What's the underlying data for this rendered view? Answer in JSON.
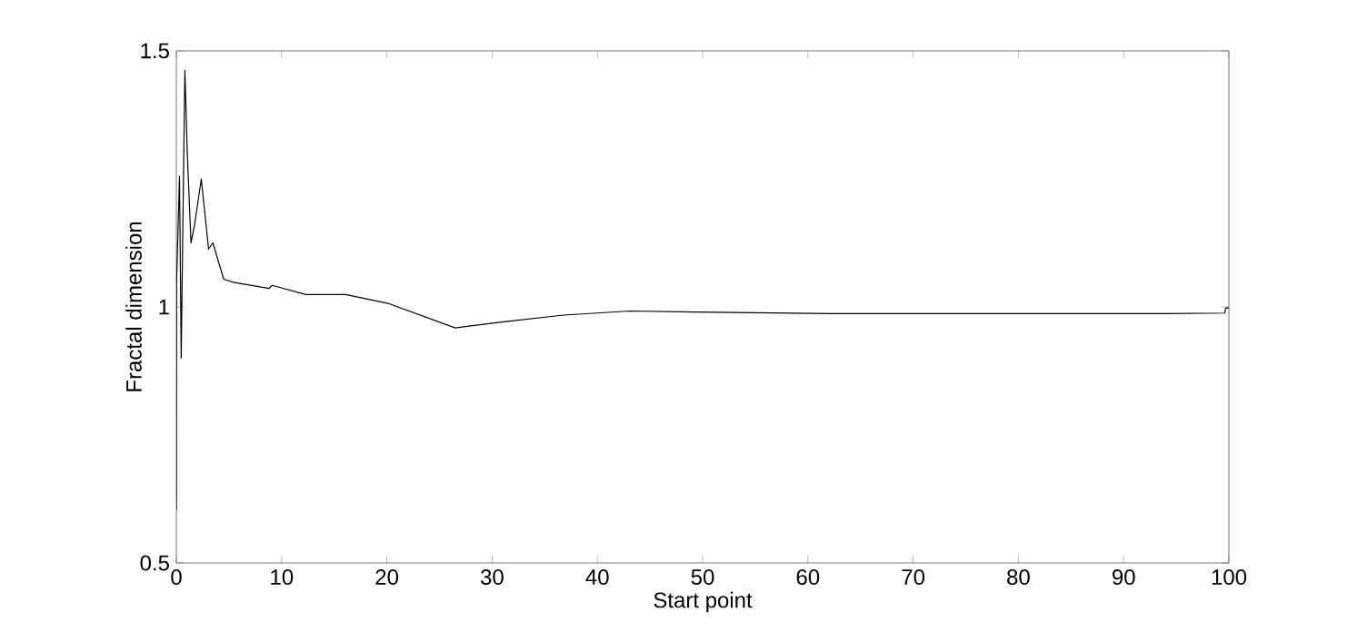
{
  "chart_data": {
    "type": "line",
    "xlabel": "Start point",
    "ylabel": "Fractal dimension",
    "xlim": [
      0,
      100
    ],
    "ylim": [
      0.5,
      1.5
    ],
    "xticks": [
      0,
      10,
      20,
      30,
      40,
      50,
      60,
      70,
      80,
      90,
      100
    ],
    "yticks": [
      0.5,
      1,
      1.5
    ],
    "grid": false,
    "marker": "none",
    "line_style": "solid",
    "series": [
      {
        "color": "#000000",
        "x": [
          0.0,
          0.02,
          0.3,
          0.46,
          0.64,
          0.81,
          1.04,
          1.39,
          1.73,
          2.37,
          3.06,
          3.47,
          4.5,
          5.4,
          8.8,
          9.1,
          12.3,
          16.1,
          20.1,
          26.5,
          31.1,
          36.8,
          43.1,
          49.5,
          62.1,
          93.8,
          99.6,
          99.7,
          100
        ],
        "values": [
          0.604,
          1.05,
          1.255,
          0.9,
          1.196,
          1.462,
          1.3,
          1.125,
          1.16,
          1.25,
          1.113,
          1.125,
          1.054,
          1.048,
          1.036,
          1.042,
          1.024,
          1.024,
          1.007,
          0.959,
          0.971,
          0.984,
          0.992,
          0.99,
          0.987,
          0.987,
          0.988,
          0.998,
          0.998
        ]
      }
    ]
  }
}
